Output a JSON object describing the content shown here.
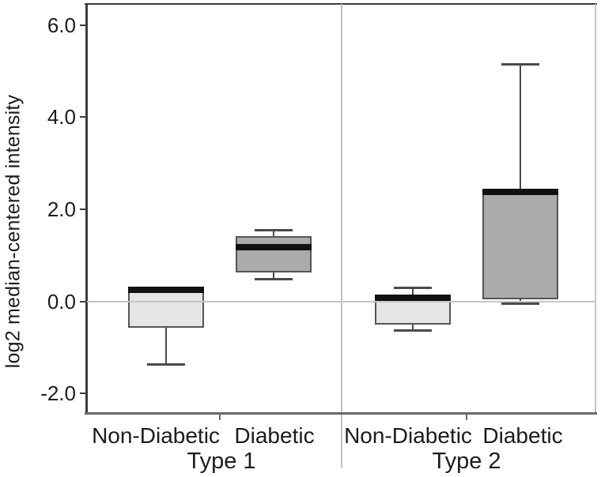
{
  "figure": {
    "background": "#ffffff"
  },
  "chart_data": {
    "type": "boxplot",
    "title": "",
    "xlabel": "",
    "ylabel": "log2 median-centered intensity",
    "ylim": [
      -2.45,
      6.45
    ],
    "grid": false,
    "zero_line": 0.0,
    "yticks": [
      {
        "value": 6.0,
        "label": "6.0"
      },
      {
        "value": 4.0,
        "label": "4.0"
      },
      {
        "value": 2.0,
        "label": "2.0"
      },
      {
        "value": 0.0,
        "label": "0.0"
      },
      {
        "value": -2.0,
        "label": "-2.0"
      }
    ],
    "groups": [
      {
        "label": "Type 1",
        "boxes": [
          {
            "category": "Non-Diabetic",
            "whisker_low": -1.38,
            "q1": -0.58,
            "median": 0.25,
            "q3": 0.3,
            "whisker_high": 0.3,
            "fill": "light"
          },
          {
            "category": "Diabetic",
            "whisker_low": 0.48,
            "q1": 0.62,
            "median": 1.17,
            "q3": 1.42,
            "whisker_high": 1.55,
            "fill": "dark"
          }
        ]
      },
      {
        "label": "Type 2",
        "boxes": [
          {
            "category": "Non-Diabetic",
            "whisker_low": -0.65,
            "q1": -0.51,
            "median": 0.08,
            "q3": 0.12,
            "whisker_high": 0.3,
            "fill": "light"
          },
          {
            "category": "Diabetic",
            "whisker_low": -0.06,
            "q1": 0.04,
            "median": 2.38,
            "q3": 2.42,
            "whisker_high": 5.15,
            "fill": "dark"
          }
        ]
      }
    ],
    "colors": {
      "box_fill_light": "#e5e5e5",
      "box_fill_dark": "#ababab",
      "box_border": "#555555",
      "median": "#111111",
      "whisker": "#4a4a4a",
      "axis_dark": "#3c3c3c",
      "axis_gray": "#6a6a6a",
      "axis_light": "#c4c4c4",
      "text": "#1c1c1c"
    }
  }
}
